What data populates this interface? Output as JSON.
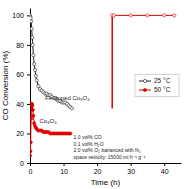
{
  "chart_data": {
    "type": "line",
    "xlabel": "Time (h)",
    "ylabel": "CO Conversion (%)",
    "xlim": [
      0,
      45
    ],
    "ylim": [
      0,
      105
    ],
    "xticks": [
      0,
      10,
      20,
      30,
      40
    ],
    "yticks": [
      0,
      20,
      40,
      60,
      80,
      100
    ],
    "legend": "right",
    "series": [
      {
        "name": "25 °C",
        "color": "#222222",
        "marker": "open-circle",
        "x": [
          0.0,
          0.1,
          0.2,
          0.33,
          0.5,
          0.67,
          0.83,
          1.0,
          1.25,
          1.5,
          1.75,
          2.0,
          2.5,
          3.0,
          3.5,
          4.0,
          4.5,
          5.0,
          5.5,
          6.0,
          6.5,
          7.0,
          7.5,
          8.0,
          8.5,
          9.0,
          9.5,
          10.0,
          10.5,
          11.0,
          11.5,
          12.0,
          12.5
        ],
        "values": [
          100,
          99,
          98,
          96,
          91,
          85,
          80,
          73,
          67,
          63,
          59,
          56,
          52,
          50,
          49,
          48,
          47,
          47,
          46,
          46,
          45,
          44,
          44,
          43,
          42,
          42,
          41,
          41,
          41,
          40,
          39,
          38,
          37
        ]
      },
      {
        "color": "#dd0000",
        "marker": "none",
        "x": [
          24.5,
          24.5
        ],
        "values": [
          37,
          100
        ]
      },
      {
        "color": "#dd0000",
        "marker": "open-circle",
        "x": [
          24.5,
          25.0,
          30.0,
          35.0,
          40.0,
          43.0
        ],
        "values": [
          100,
          100,
          100,
          100,
          100,
          100
        ]
      },
      {
        "name": "50 °C",
        "color": "#dd0000",
        "marker": "circle",
        "x": [
          0.0,
          0.1,
          0.2,
          0.33,
          0.5,
          0.5,
          0.67,
          0.83,
          1.0,
          1.25,
          1.5,
          1.75,
          2.0,
          2.5,
          3.0,
          3.5,
          4.0,
          4.5,
          5.0,
          5.5,
          6.0,
          6.5,
          7.0,
          7.5,
          8.0,
          8.5,
          9.0,
          9.5,
          10.0,
          10.5,
          11.0,
          11.5,
          12.0
        ],
        "values": [
          5,
          8,
          14,
          30,
          40,
          40,
          39,
          36,
          32,
          27,
          25,
          24,
          23,
          22,
          22,
          22,
          21,
          21,
          21,
          21,
          20,
          20,
          20,
          20,
          20,
          20,
          20,
          20,
          20,
          20,
          20,
          20,
          20
        ]
      }
    ],
    "annotations": [
      {
        "text": "Fe-doped Co₃O₄",
        "x": 4.5,
        "y": 43
      },
      {
        "text": "Co₃O₄",
        "x": 2.8,
        "y": 27
      },
      {
        "text": [
          "1.0 vol% CO",
          "0.1 vol% H₂O",
          "2.0 vol% O₂ barianced with N₂",
          "space velocity: 15000 ml h⁻¹ g⁻¹"
        ],
        "x": 13.0,
        "y": 2
      }
    ]
  }
}
